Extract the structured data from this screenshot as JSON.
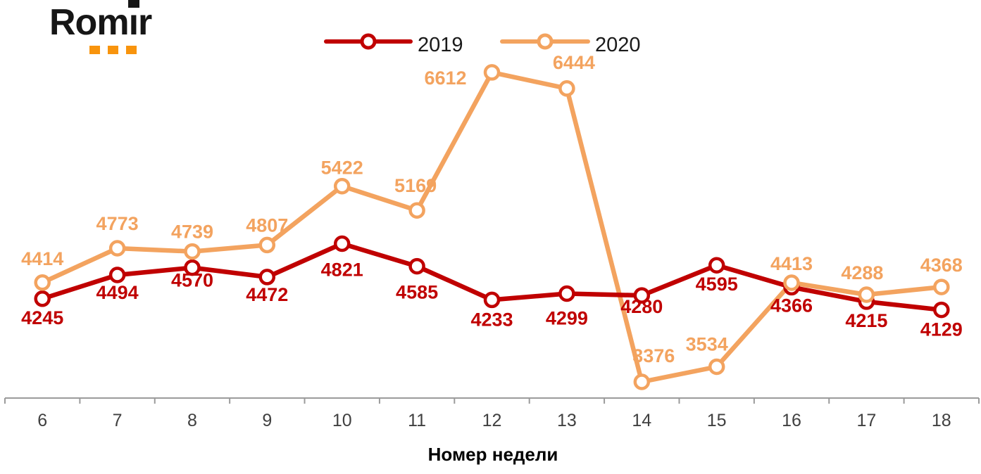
{
  "logo": {
    "part1": "Rom",
    "stem": "ı",
    "part2": "r",
    "text": "Romir",
    "brand_black": "#161616",
    "brand_orange": "#F8940D"
  },
  "chart_data": {
    "type": "line",
    "title": "",
    "xlabel": "Номер недели",
    "ylabel": "",
    "categories": [
      "6",
      "7",
      "8",
      "9",
      "10",
      "11",
      "12",
      "13",
      "14",
      "15",
      "16",
      "17",
      "18"
    ],
    "x": [
      6,
      7,
      8,
      9,
      10,
      11,
      12,
      13,
      14,
      15,
      16,
      17,
      18
    ],
    "series": [
      {
        "name": "2019",
        "color": "#C00000",
        "values": [
          4245,
          4494,
          4570,
          4472,
          4821,
          4585,
          4233,
          4299,
          4280,
          4595,
          4366,
          4215,
          4129
        ]
      },
      {
        "name": "2020",
        "color": "#F3A35F",
        "values": [
          4414,
          4773,
          4739,
          4807,
          5422,
          5169,
          6612,
          6444,
          3376,
          3534,
          4413,
          4288,
          4368
        ]
      }
    ],
    "ylim": [
      3230,
      6890
    ],
    "grid": false,
    "legend_position": "top-center",
    "marker": "open-circle",
    "data_labels": true,
    "axis_color": "#9B9B9B",
    "tick_label_color": "#404040",
    "axis_title_color": "#000000",
    "legend_text_color": "#1a1a1a"
  }
}
